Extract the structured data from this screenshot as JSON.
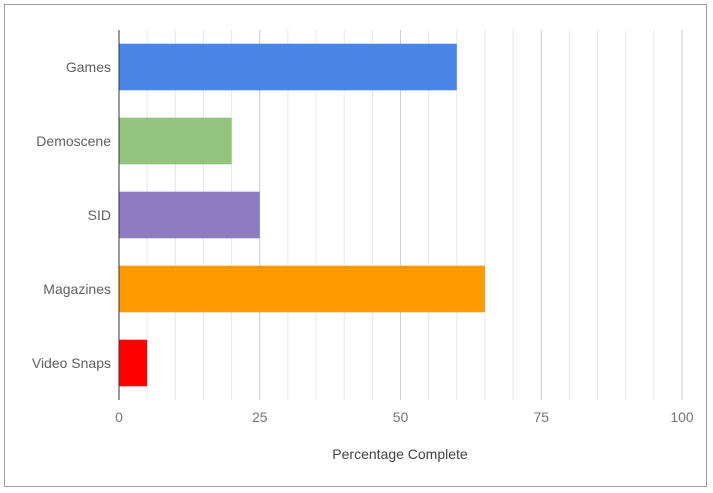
{
  "chart_data": {
    "type": "bar",
    "orientation": "horizontal",
    "categories": [
      "Games",
      "Demoscene",
      "SID",
      "Magazines",
      "Video Snaps"
    ],
    "values": [
      60,
      20,
      25,
      65,
      5
    ],
    "colors": [
      "#4a86e8",
      "#93c47d",
      "#8e7cc3",
      "#ff9900",
      "#ff0000"
    ],
    "xlabel": "Percentage Complete",
    "ylabel": "",
    "xlim": [
      0,
      100
    ],
    "xticks": [
      0,
      25,
      50,
      75,
      100
    ],
    "grid": true
  }
}
